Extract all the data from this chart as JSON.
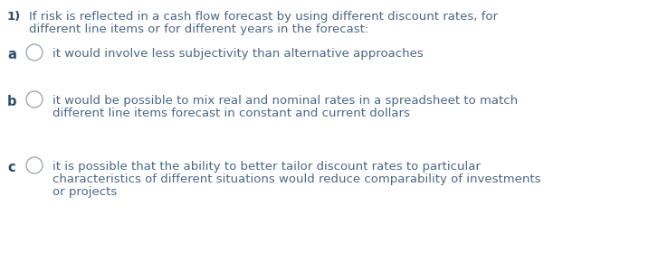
{
  "background_color": "#ffffff",
  "text_color": "#4a6785",
  "label_color": "#2c4a6e",
  "question_number": "1)",
  "question_text_line1": "If risk is reflected in a cash flow forecast by using different discount rates, for",
  "question_text_line2": "different line items or for different years in the forecast:",
  "options": [
    {
      "label": "a",
      "text_lines": [
        "it would involve less subjectivity than alternative approaches"
      ]
    },
    {
      "label": "b",
      "text_lines": [
        "it would be possible to mix real and nominal rates in a spreadsheet to match",
        "different line items forecast in constant and current dollars"
      ]
    },
    {
      "label": "c",
      "text_lines": [
        "it is possible that the ability to better tailor discount rates to particular",
        "characteristics of different situations would reduce comparability of investments",
        "or projects"
      ]
    }
  ],
  "font_size_question": 9.5,
  "font_size_option_label": 10.5,
  "font_size_option_text": 9.5,
  "figsize": [
    7.38,
    2.9
  ],
  "dpi": 100
}
